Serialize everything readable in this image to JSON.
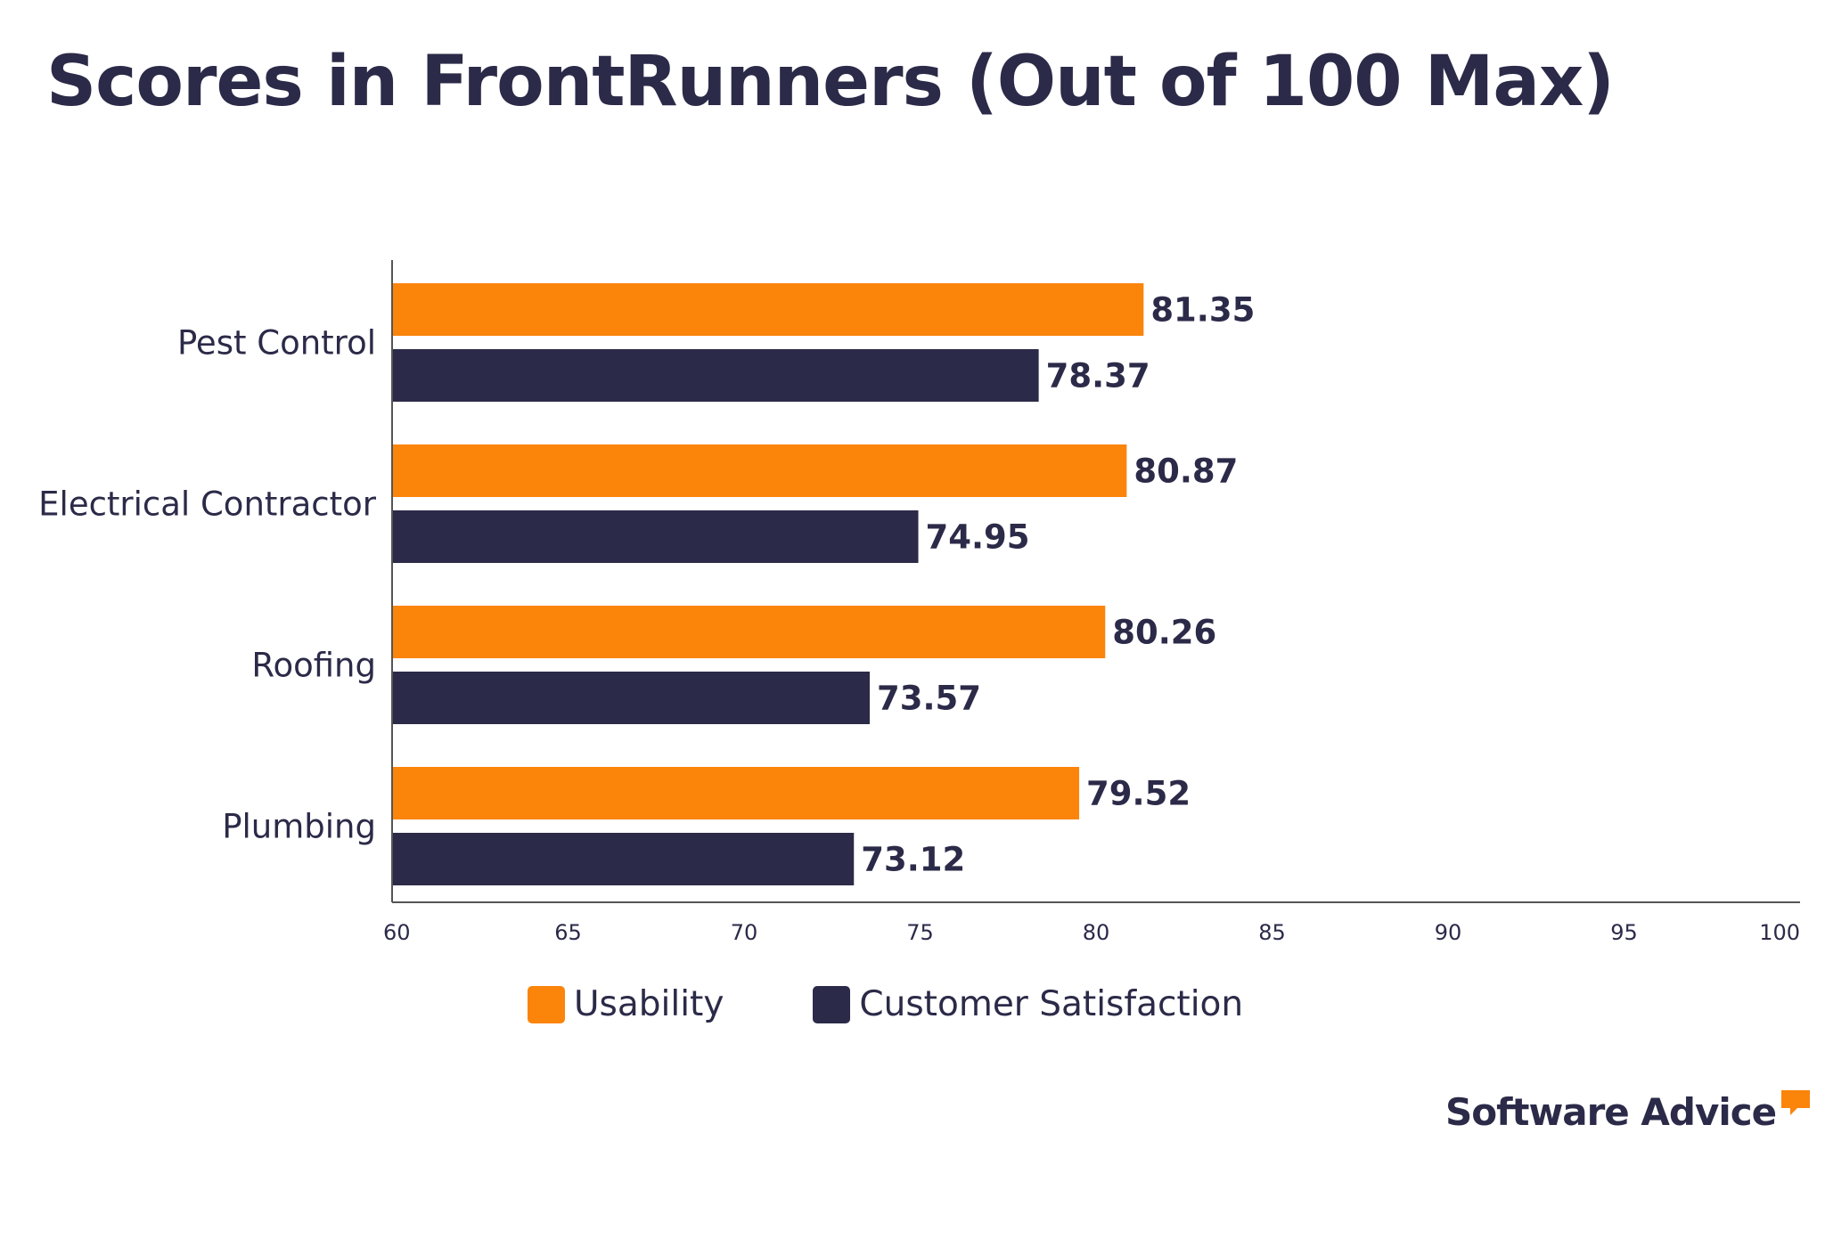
{
  "chart_data": {
    "type": "bar",
    "orientation": "horizontal",
    "title": "Scores in FrontRunners (Out of 100 Max)",
    "categories": [
      "Pest Control",
      "Electrical Contractor",
      "Roofing",
      "Plumbing"
    ],
    "series": [
      {
        "name": "Usability",
        "color": "#fb840b",
        "values": [
          81.35,
          80.87,
          80.26,
          79.52
        ]
      },
      {
        "name": "Customer Satisfaction",
        "color": "#2b2a48",
        "values": [
          78.37,
          74.95,
          73.57,
          73.12
        ]
      }
    ],
    "xlim": [
      60,
      100
    ],
    "xticks": [
      60,
      65,
      70,
      75,
      80,
      85,
      90,
      95,
      100
    ],
    "value_labels": true,
    "grid": false,
    "legend_position": "bottom"
  },
  "brand": {
    "logo_text": "Software Advice",
    "accent_color": "#fb840b",
    "text_color": "#2b2a48"
  }
}
